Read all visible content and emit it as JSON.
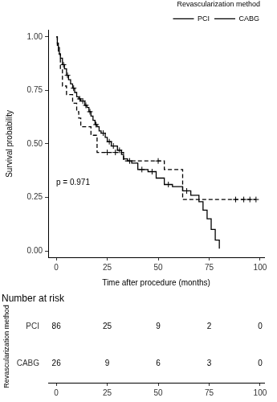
{
  "chart_data": {
    "type": "line",
    "legend": "top",
    "legend_title": "Revascularization method",
    "x_label": "Time after procedure (months)",
    "y_label": "Survival probability",
    "xlim": [
      -4,
      102
    ],
    "xticks": [
      0,
      25,
      50,
      75,
      100
    ],
    "ylim": [
      -0.03,
      1.03
    ],
    "yticks": [
      {
        "value": 0,
        "label": "0.00"
      },
      {
        "value": 0.25,
        "label": "0.25"
      },
      {
        "value": 0.5,
        "label": "0.50"
      },
      {
        "value": 0.75,
        "label": "0.75"
      },
      {
        "value": 1,
        "label": "1.00"
      }
    ],
    "grid": false,
    "annotations": [
      {
        "text": "p = 0.971"
      }
    ],
    "series": [
      {
        "name": "PCI",
        "color": "#000000",
        "line_style": "solid",
        "marker": "cross",
        "x": [
          0,
          0.5,
          1,
          1.5,
          2,
          3,
          4,
          5,
          6,
          7,
          8,
          9,
          10,
          11,
          12,
          14,
          15,
          16,
          17,
          18,
          19,
          20,
          21,
          22,
          24,
          25,
          27,
          30,
          32,
          33,
          35,
          37,
          40,
          45,
          49,
          53,
          57,
          62,
          66,
          70,
          72,
          74,
          76,
          78,
          80
        ],
        "values": [
          1,
          0.97,
          0.95,
          0.92,
          0.9,
          0.87,
          0.85,
          0.82,
          0.8,
          0.78,
          0.76,
          0.74,
          0.72,
          0.71,
          0.7,
          0.68,
          0.67,
          0.65,
          0.63,
          0.61,
          0.59,
          0.58,
          0.56,
          0.55,
          0.53,
          0.51,
          0.49,
          0.47,
          0.45,
          0.43,
          0.42,
          0.41,
          0.38,
          0.37,
          0.34,
          0.31,
          0.3,
          0.28,
          0.26,
          0.23,
          0.19,
          0.15,
          0.1,
          0.05,
          0.01
        ],
        "censored": {
          "x": [
            3.5,
            5.5,
            8.5,
            11.5,
            13,
            14.5,
            16.5,
            19.5,
            23,
            26,
            28,
            31,
            36,
            42,
            47,
            55,
            64
          ],
          "y": [
            0.87,
            0.82,
            0.76,
            0.71,
            0.7,
            0.68,
            0.65,
            0.59,
            0.55,
            0.51,
            0.49,
            0.47,
            0.42,
            0.38,
            0.37,
            0.31,
            0.28
          ]
        }
      },
      {
        "name": "CABG",
        "color": "#000000",
        "line_style": "dashed",
        "marker": "cross",
        "x": [
          0,
          0.5,
          1,
          2,
          3,
          5,
          8,
          10,
          11,
          12,
          17,
          20,
          33,
          53,
          62,
          98
        ],
        "values": [
          1,
          0.96,
          0.92,
          0.85,
          0.77,
          0.73,
          0.69,
          0.65,
          0.62,
          0.58,
          0.54,
          0.46,
          0.42,
          0.38,
          0.24,
          0.24
        ],
        "censored": {
          "x": [
            25,
            29,
            50,
            88,
            92,
            95,
            98
          ],
          "y": [
            0.46,
            0.46,
            0.42,
            0.24,
            0.24,
            0.24,
            0.24
          ]
        }
      }
    ],
    "risk_table": {
      "title": "Number at risk",
      "row_label": "Revascularization method",
      "times": [
        0,
        25,
        50,
        75,
        100
      ],
      "rows": [
        {
          "name": "PCI",
          "counts": [
            86,
            25,
            9,
            2,
            0
          ]
        },
        {
          "name": "CABG",
          "counts": [
            26,
            9,
            6,
            3,
            0
          ]
        }
      ]
    }
  }
}
